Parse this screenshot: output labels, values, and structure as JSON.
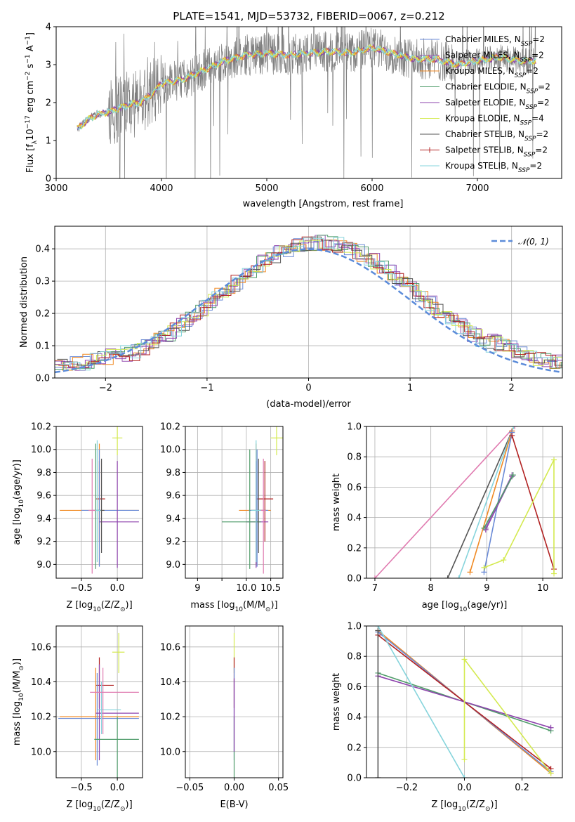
{
  "figure_title": "PLATE=1541, MJD=53732, FIBERID=0067, z=0.212",
  "colors": {
    "Chabrier MILES": "#6a8ad6",
    "Salpeter MILES": "#9b59b6",
    "Kroupa MILES": "#f08a24",
    "Chabrier ELODIE": "#4f9c6a",
    "Salpeter ELODIE": "#8e44ad",
    "Kroupa ELODIE": "#d4ea50",
    "Chabrier STELIB": "#555555",
    "Salpeter STELIB": "#b22222",
    "Kroupa STELIB": "#86d4dc",
    "extra": "#e07bb0",
    "gaussian": "#5b8bd9"
  },
  "chart_data": [
    {
      "id": "spectrum",
      "type": "line",
      "title": "PLATE=1541, MJD=53732, FIBERID=0067, z=0.212",
      "xlabel": "wavelength [Angstrom, rest frame]",
      "ylabel_parts": [
        "Flux [f",
        "λ",
        "10",
        "−17",
        " erg cm",
        "−2",
        " s",
        "−1",
        " A",
        "−1",
        "]"
      ],
      "xlim": [
        3000,
        7800
      ],
      "ylim": [
        0,
        4
      ],
      "xticks": [
        3000,
        4000,
        5000,
        6000,
        7000
      ],
      "yticks": [
        0,
        1,
        2,
        3,
        4
      ],
      "continuum": {
        "x": [
          3200,
          3300,
          3400,
          3500,
          3600,
          3700,
          3800,
          3900,
          4000,
          4200,
          4400,
          4600,
          4800,
          5000,
          5200,
          5400,
          5600,
          5800,
          6000,
          6200,
          6400,
          6600,
          6800,
          7000,
          7200,
          7400,
          7560
        ],
        "y": [
          1.3,
          1.55,
          1.7,
          1.75,
          1.85,
          1.95,
          2.0,
          2.2,
          2.5,
          2.6,
          2.85,
          3.1,
          3.25,
          3.3,
          3.25,
          3.3,
          3.35,
          3.3,
          3.45,
          3.3,
          3.15,
          3.15,
          3.0,
          3.1,
          3.2,
          3.1,
          3.1
        ]
      },
      "legend_position": "right",
      "legend": [
        {
          "name": "Chabrier MILES, N",
          "sub": "SSP",
          "suffix": "=2"
        },
        {
          "name": "Salpeter MILES, N",
          "sub": "SSP",
          "suffix": "=2"
        },
        {
          "name": "Kroupa MILES, N",
          "sub": "SSP",
          "suffix": "=2"
        },
        {
          "name": "Chabrier ELODIE, N",
          "sub": "SSP",
          "suffix": "=2"
        },
        {
          "name": "Salpeter ELODIE, N",
          "sub": "SSP",
          "suffix": "=2"
        },
        {
          "name": "Kroupa ELODIE, N",
          "sub": "SSP",
          "suffix": "=4"
        },
        {
          "name": "Chabrier STELIB, N",
          "sub": "SSP",
          "suffix": "=2"
        },
        {
          "name": "Salpeter STELIB, N",
          "sub": "SSP",
          "suffix": "=2"
        },
        {
          "name": "Kroupa STELIB, N",
          "sub": "SSP",
          "suffix": "=2"
        }
      ]
    },
    {
      "id": "residuals",
      "type": "histogram",
      "xlabel": "(data-model)/error",
      "ylabel": "Normed distribution",
      "xlim": [
        -2.5,
        2.5
      ],
      "ylim": [
        0,
        0.47
      ],
      "xticks": [
        -2,
        -1,
        0,
        1,
        2
      ],
      "xticklabels": [
        "−2",
        "−1",
        "0",
        "1",
        "2"
      ],
      "yticks": [
        0.0,
        0.1,
        0.2,
        0.3,
        0.4
      ],
      "yticklabels": [
        "0.0",
        "0.1",
        "0.2",
        "0.3",
        "0.4"
      ],
      "bin_width": 0.1,
      "gaussian_label": "𝒩(0, 1)",
      "legend_position": "top-right"
    },
    {
      "id": "age-vs-Z",
      "type": "scatter",
      "xlabel": "Z [log10(Z/Z⊙)]",
      "ylabel": "age  [log10(age/yr)]",
      "xlim": [
        -0.85,
        0.35
      ],
      "ylim": [
        8.88,
        10.2
      ],
      "xticks": [
        -0.5,
        0.0
      ],
      "xticklabels": [
        "−0.5",
        "0.0"
      ],
      "yticks": [
        9.0,
        9.2,
        9.4,
        9.6,
        9.8,
        10.0,
        10.2
      ],
      "yticklabels": [
        "9.0",
        "9.2",
        "9.4",
        "9.6",
        "9.8",
        "10.0",
        "10.2"
      ],
      "points": [
        {
          "x": 0.0,
          "y": 10.1,
          "xlo": -0.07,
          "xhi": 0.07,
          "ylo": 9.95,
          "yhi": 10.2,
          "color": "Kroupa ELODIE"
        },
        {
          "x": -0.25,
          "y": 9.57,
          "xlo": -0.3,
          "xhi": -0.17,
          "ylo": 9.2,
          "yhi": 9.9,
          "color": "Salpeter STELIB"
        },
        {
          "x": -0.25,
          "y": 9.47,
          "xlo": -0.8,
          "xhi": 0.3,
          "ylo": 9.0,
          "yhi": 10.05,
          "color": "Kroupa MILES"
        },
        {
          "x": -0.25,
          "y": 9.47,
          "xlo": -0.5,
          "xhi": 0.3,
          "ylo": 8.98,
          "yhi": 10.0,
          "color": "Chabrier MILES"
        },
        {
          "x": 0.0,
          "y": 9.37,
          "xlo": -0.25,
          "xhi": 0.3,
          "ylo": 8.97,
          "yhi": 9.9,
          "color": "Salpeter ELODIE"
        },
        {
          "x": -0.3,
          "y": 9.47,
          "xlo": -0.35,
          "xhi": -0.25,
          "ylo": 8.96,
          "yhi": 10.05,
          "color": "Chabrier ELODIE"
        },
        {
          "x": -0.22,
          "y": 9.47,
          "xlo": -0.27,
          "xhi": -0.18,
          "ylo": 9.1,
          "yhi": 9.92,
          "color": "Chabrier STELIB"
        },
        {
          "x": -0.28,
          "y": 9.47,
          "xlo": -0.33,
          "xhi": -0.23,
          "ylo": 9.02,
          "yhi": 10.08,
          "color": "Kroupa STELIB"
        },
        {
          "x": -0.35,
          "y": 9.47,
          "xlo": -0.4,
          "xhi": -0.3,
          "ylo": 8.92,
          "yhi": 9.92,
          "color": "extra"
        }
      ]
    },
    {
      "id": "age-vs-mass",
      "type": "scatter",
      "xlabel": "mass [log10(M/M⊙)]",
      "xlim": [
        8.75,
        10.75
      ],
      "ylim": [
        8.88,
        10.2
      ],
      "xticks": [
        9.0,
        9.5,
        10.0,
        10.5
      ],
      "xticklabels": [
        "9",
        "",
        "10.0",
        "10.5"
      ],
      "yticks": [
        9.0,
        9.2,
        9.4,
        9.6,
        9.8,
        10.0,
        10.2
      ],
      "yticklabels": [
        "9.0",
        "9.2",
        "9.4",
        "9.6",
        "9.8",
        "10.0",
        "10.2"
      ],
      "points": [
        {
          "x": 10.62,
          "y": 10.1,
          "xlo": 10.5,
          "xhi": 10.75,
          "ylo": 9.95,
          "yhi": 10.2,
          "color": "Kroupa ELODIE"
        },
        {
          "x": 10.38,
          "y": 9.57,
          "xlo": 10.2,
          "xhi": 10.55,
          "ylo": 9.2,
          "yhi": 9.9,
          "color": "Salpeter STELIB"
        },
        {
          "x": 10.2,
          "y": 9.47,
          "xlo": 9.85,
          "xhi": 10.5,
          "ylo": 9.0,
          "yhi": 10.05,
          "color": "Kroupa MILES"
        },
        {
          "x": 10.22,
          "y": 9.47,
          "xlo": 10.05,
          "xhi": 10.45,
          "ylo": 8.98,
          "yhi": 10.0,
          "color": "Chabrier MILES"
        },
        {
          "x": 10.2,
          "y": 9.37,
          "xlo": 10.0,
          "xhi": 10.45,
          "ylo": 8.97,
          "yhi": 9.9,
          "color": "Salpeter ELODIE"
        },
        {
          "x": 10.07,
          "y": 9.37,
          "xlo": 9.5,
          "xhi": 10.3,
          "ylo": 8.96,
          "yhi": 10.0,
          "color": "Chabrier ELODIE"
        },
        {
          "x": 10.25,
          "y": 9.47,
          "xlo": 10.1,
          "xhi": 10.4,
          "ylo": 9.1,
          "yhi": 9.92,
          "color": "Chabrier STELIB"
        },
        {
          "x": 10.2,
          "y": 9.47,
          "xlo": 10.1,
          "xhi": 10.3,
          "ylo": 9.02,
          "yhi": 10.08,
          "color": "Kroupa STELIB"
        },
        {
          "x": 10.35,
          "y": 9.47,
          "xlo": 10.3,
          "xhi": 10.4,
          "ylo": 8.92,
          "yhi": 9.92,
          "color": "extra"
        }
      ]
    },
    {
      "id": "weight-vs-age",
      "type": "line",
      "xlabel": "age  [log10(age/yr)]",
      "ylabel": "mass weight",
      "xlim": [
        6.85,
        10.35
      ],
      "ylim": [
        0,
        1
      ],
      "xticks": [
        7,
        8,
        9,
        10
      ],
      "xticklabels": [
        "7",
        "8",
        "9",
        "10"
      ],
      "yticks": [
        0.0,
        0.2,
        0.4,
        0.6,
        0.8,
        1.0
      ],
      "yticklabels": [
        "0.0",
        "0.2",
        "0.4",
        "0.6",
        "0.8",
        "1.0"
      ],
      "series": [
        {
          "color": "extra",
          "x": [
            7.0,
            9.5
          ],
          "y": [
            0.0,
            1.0
          ]
        },
        {
          "color": "Chabrier STELIB",
          "x": [
            8.3,
            9.45
          ],
          "y": [
            0.0,
            0.97
          ]
        },
        {
          "color": "Kroupa STELIB",
          "x": [
            8.5,
            9.48
          ],
          "y": [
            0.0,
            1.0
          ]
        },
        {
          "color": "Kroupa MILES",
          "x": [
            8.7,
            9.45
          ],
          "y": [
            0.04,
            0.97
          ]
        },
        {
          "color": "Chabrier MILES",
          "x": [
            8.95,
            9.45
          ],
          "y": [
            0.04,
            0.96
          ]
        },
        {
          "color": "Salpeter ELODIE",
          "x": [
            8.98,
            9.45
          ],
          "y": [
            0.32,
            0.67
          ]
        },
        {
          "color": "Salpeter MILES",
          "x": [
            8.98,
            9.45
          ],
          "y": [
            0.33,
            0.68
          ]
        },
        {
          "color": "Chabrier ELODIE",
          "x": [
            8.95,
            9.47
          ],
          "y": [
            0.33,
            0.68
          ]
        },
        {
          "color": "Salpeter STELIB",
          "x": [
            9.45,
            10.2
          ],
          "y": [
            0.94,
            0.06
          ]
        },
        {
          "color": "Kroupa ELODIE",
          "x": [
            8.95,
            9.3,
            10.2,
            10.2
          ],
          "y": [
            0.07,
            0.12,
            0.78,
            0.03
          ]
        }
      ]
    },
    {
      "id": "mass-vs-Z",
      "type": "scatter",
      "xlabel": "Z [log10(Z/Z⊙)]",
      "ylabel": "mass [log10(M/M⊙)]",
      "xlim": [
        -0.85,
        0.35
      ],
      "ylim": [
        9.85,
        10.72
      ],
      "xticks": [
        -0.5,
        0.0
      ],
      "xticklabels": [
        "−0.5",
        "0.0"
      ],
      "yticks": [
        10.0,
        10.2,
        10.4,
        10.6
      ],
      "yticklabels": [
        "10.0",
        "10.2",
        "10.4",
        "10.6"
      ],
      "points": [
        {
          "x": 0.02,
          "y": 10.57,
          "xlo": -0.07,
          "xhi": 0.1,
          "ylo": 10.45,
          "yhi": 10.68,
          "color": "Kroupa ELODIE"
        },
        {
          "x": -0.25,
          "y": 10.38,
          "xlo": -0.3,
          "xhi": -0.05,
          "ylo": 10.25,
          "yhi": 10.54,
          "color": "Salpeter STELIB"
        },
        {
          "x": -0.3,
          "y": 10.2,
          "xlo": -0.8,
          "xhi": 0.3,
          "ylo": 9.95,
          "yhi": 10.48,
          "color": "Kroupa MILES"
        },
        {
          "x": -0.28,
          "y": 10.19,
          "xlo": -0.82,
          "xhi": 0.3,
          "ylo": 9.92,
          "yhi": 10.45,
          "color": "Chabrier MILES"
        },
        {
          "x": -0.25,
          "y": 10.22,
          "xlo": -0.3,
          "xhi": 0.3,
          "ylo": 9.95,
          "yhi": 10.5,
          "color": "Salpeter ELODIE"
        },
        {
          "x": 0.0,
          "y": 10.07,
          "xlo": -0.32,
          "xhi": 0.3,
          "ylo": 9.85,
          "yhi": 10.2,
          "color": "Chabrier ELODIE"
        },
        {
          "x": -0.22,
          "y": 10.24,
          "xlo": -0.27,
          "xhi": 0.05,
          "ylo": 10.1,
          "yhi": 10.4,
          "color": "Kroupa STELIB"
        },
        {
          "x": -0.2,
          "y": 10.34,
          "xlo": -0.38,
          "xhi": 0.3,
          "ylo": 10.1,
          "yhi": 10.48,
          "color": "extra"
        }
      ]
    },
    {
      "id": "mass-vs-ebv",
      "type": "scatter",
      "xlabel": "E(B-V)",
      "xlim": [
        -0.055,
        0.055
      ],
      "ylim": [
        9.85,
        10.72
      ],
      "xticks": [
        -0.05,
        0.0,
        0.05
      ],
      "xticklabels": [
        "−0.05",
        "0.00",
        "0.05"
      ],
      "yticks": [
        10.0,
        10.2,
        10.4,
        10.6
      ],
      "yticklabels": [
        "10.0",
        "10.2",
        "10.4",
        "10.6"
      ],
      "points": [
        {
          "x": 0.0,
          "y": 10.57,
          "ylo": 10.45,
          "yhi": 10.68,
          "color": "Kroupa ELODIE"
        },
        {
          "x": 0.0,
          "y": 10.38,
          "ylo": 10.25,
          "yhi": 10.54,
          "color": "Salpeter STELIB"
        },
        {
          "x": 0.0,
          "y": 10.2,
          "ylo": 9.95,
          "yhi": 10.48,
          "color": "Chabrier MILES"
        },
        {
          "x": 0.0,
          "y": 10.1,
          "ylo": 9.85,
          "yhi": 10.2,
          "color": "Chabrier ELODIE"
        },
        {
          "x": 0.0,
          "y": 10.15,
          "ylo": 10.0,
          "yhi": 10.42,
          "color": "Salpeter ELODIE"
        }
      ]
    },
    {
      "id": "weight-vs-Z",
      "type": "line",
      "xlabel": "Z [log10(Z/Z⊙)]",
      "ylabel": "mass weight",
      "xlim": [
        -0.34,
        0.34
      ],
      "ylim": [
        0,
        1
      ],
      "xticks": [
        -0.2,
        0.0,
        0.2
      ],
      "xticklabels": [
        "−0.2",
        "0.0",
        "0.2"
      ],
      "yticks": [
        0.0,
        0.2,
        0.4,
        0.6,
        0.8,
        1.0
      ],
      "yticklabels": [
        "0.0",
        "0.2",
        "0.4",
        "0.6",
        "0.8",
        "1.0"
      ],
      "series": [
        {
          "color": "Kroupa MILES",
          "x": [
            -0.3,
            0.3
          ],
          "y": [
            0.97,
            0.03
          ]
        },
        {
          "color": "Chabrier MILES",
          "x": [
            -0.3,
            0.3
          ],
          "y": [
            0.96,
            0.04
          ]
        },
        {
          "color": "Salpeter STELIB",
          "x": [
            -0.3,
            0.3
          ],
          "y": [
            0.94,
            0.06
          ]
        },
        {
          "color": "Chabrier ELODIE",
          "x": [
            -0.3,
            0.3
          ],
          "y": [
            0.69,
            0.31
          ]
        },
        {
          "color": "Salpeter ELODIE",
          "x": [
            -0.3,
            0.3
          ],
          "y": [
            0.67,
            0.33
          ]
        },
        {
          "color": "Kroupa STELIB",
          "x": [
            -0.3,
            0.0
          ],
          "y": [
            1.0,
            0.0
          ]
        },
        {
          "color": "Chabrier STELIB",
          "x": [
            -0.3,
            -0.3
          ],
          "y": [
            0.97,
            0.0
          ]
        },
        {
          "color": "Kroupa ELODIE",
          "x": [
            0.0,
            0.0,
            0.3
          ],
          "y": [
            0.12,
            0.78,
            0.03
          ]
        }
      ]
    }
  ]
}
